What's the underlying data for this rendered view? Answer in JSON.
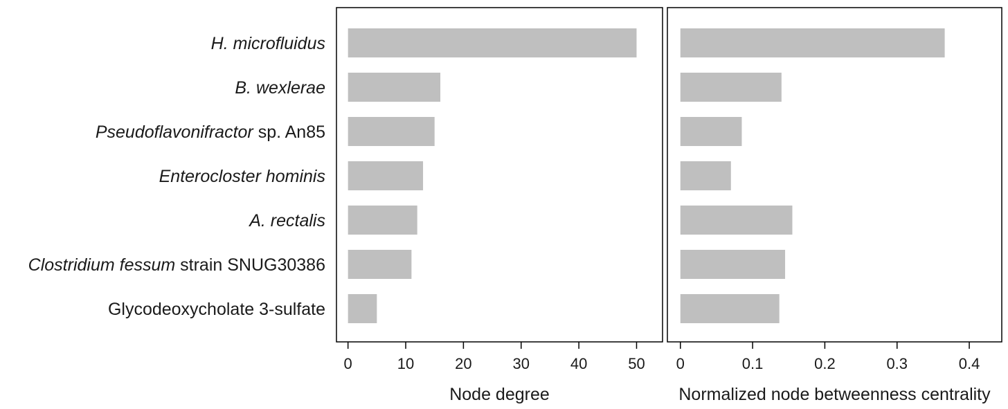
{
  "chart_data": [
    {
      "type": "bar",
      "orientation": "horizontal",
      "categories": [
        "H. microfluidus",
        "B. wexlerae",
        "Pseudoflavonifractor sp. An85",
        "Enterocloster hominis",
        "A. rectalis",
        "Clostridium fessum strain SNUG30386",
        "Glycodeoxycholate 3-sulfate"
      ],
      "category_segments": [
        [
          {
            "text": "H. microfluidus",
            "italic": true
          }
        ],
        [
          {
            "text": "B. wexlerae",
            "italic": true
          }
        ],
        [
          {
            "text": "Pseudoflavonifractor",
            "italic": true
          },
          {
            "text": " sp. An85",
            "italic": false
          }
        ],
        [
          {
            "text": "Enterocloster hominis",
            "italic": true
          }
        ],
        [
          {
            "text": "A. rectalis",
            "italic": true
          }
        ],
        [
          {
            "text": "Clostridium fessum",
            "italic": true
          },
          {
            "text": " strain SNUG30386",
            "italic": false
          }
        ],
        [
          {
            "text": "Glycodeoxycholate 3-sulfate",
            "italic": false
          }
        ]
      ],
      "values": [
        50,
        16,
        15,
        13,
        12,
        11,
        5
      ],
      "xlabel": "Node degree",
      "xlim": [
        -2,
        54.5
      ],
      "xticks": [
        0,
        10,
        20,
        30,
        40,
        50
      ],
      "xtick_labels": [
        "0",
        "10",
        "20",
        "30",
        "40",
        "50"
      ],
      "grid": false,
      "bar_color": "#bfbfbf"
    },
    {
      "type": "bar",
      "orientation": "horizontal",
      "categories": [
        "H. microfluidus",
        "B. wexlerae",
        "Pseudoflavonifractor sp. An85",
        "Enterocloster hominis",
        "A. rectalis",
        "Clostridium fessum strain SNUG30386",
        "Glycodeoxycholate 3-sulfate"
      ],
      "values": [
        0.366,
        0.14,
        0.085,
        0.07,
        0.155,
        0.145,
        0.137
      ],
      "xlabel": "Normalized node betweenness centrality",
      "xlim": [
        -0.018,
        0.445
      ],
      "xticks": [
        0,
        0.1,
        0.2,
        0.3,
        0.4
      ],
      "xtick_labels": [
        "0",
        "0.1",
        "0.2",
        "0.3",
        "0.4"
      ],
      "grid": false,
      "bar_color": "#bfbfbf"
    }
  ]
}
